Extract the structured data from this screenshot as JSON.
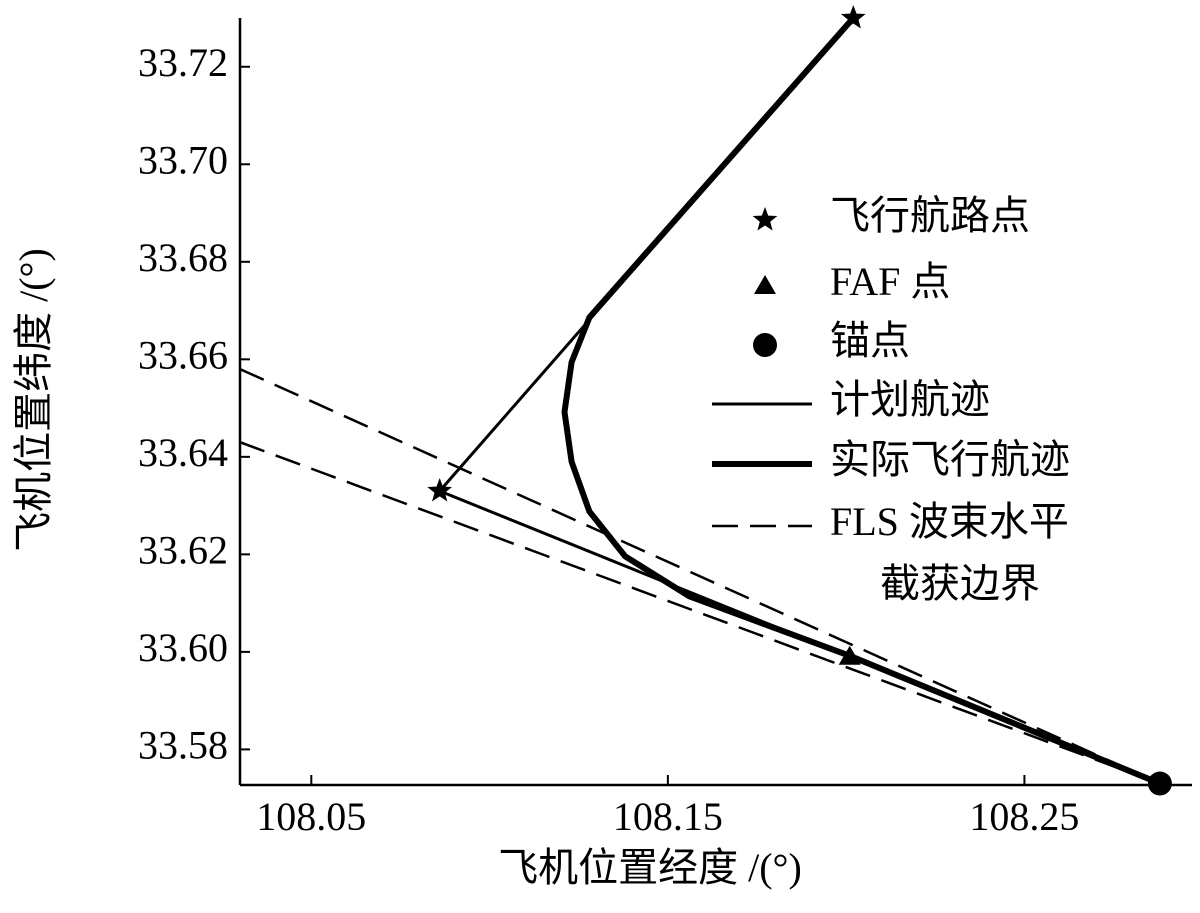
{
  "chart_data": {
    "type": "line",
    "xlabel": "飞机位置经度 /(°)",
    "ylabel": "飞机位置纬度 /(°)",
    "xlim": [
      108.03,
      108.297
    ],
    "ylim": [
      33.5727,
      33.73
    ],
    "xticks": [
      108.05,
      108.15,
      108.25
    ],
    "yticks": [
      33.58,
      {
        "value": 33.6,
        "label": "33.60"
      },
      33.62,
      33.64,
      33.66,
      33.68,
      {
        "value": 33.7,
        "label": "33.70"
      },
      33.72
    ],
    "series": [
      {
        "name": "飞行航路点",
        "marker": "star",
        "color": "#000000",
        "x": [
          108.202,
          108.086
        ],
        "y": [
          33.73,
          33.633
        ]
      },
      {
        "name": "FAF 点",
        "marker": "triangle",
        "color": "#000000",
        "x": [
          108.201
        ],
        "y": [
          33.599
        ]
      },
      {
        "name": "锚点",
        "marker": "circle",
        "color": "#000000",
        "x": [
          108.288
        ],
        "y": [
          33.573
        ]
      },
      {
        "name": "计划航迹",
        "line_style": "thin",
        "color": "#000000",
        "x": [
          108.202,
          108.086,
          108.201,
          108.288
        ],
        "y": [
          33.73,
          33.633,
          33.599,
          33.573
        ]
      },
      {
        "name": "实际飞行航迹",
        "line_style": "thick",
        "color": "#000000",
        "x": [
          108.202,
          108.128,
          108.123,
          108.121,
          108.123,
          108.128,
          108.138,
          108.156,
          108.201,
          108.288
        ],
        "y": [
          33.73,
          33.6686,
          33.6594,
          33.6492,
          33.639,
          33.6288,
          33.6196,
          33.6114,
          33.5992,
          33.573
        ]
      },
      {
        "name": [
          "FLS 波束水平",
          "截获边界"
        ],
        "line_style": "dashed",
        "color": "#000000",
        "x": [
          108.03,
          108.288,
          null,
          108.03,
          108.288
        ],
        "y": [
          33.658,
          33.573,
          null,
          33.643,
          33.573
        ]
      }
    ]
  }
}
